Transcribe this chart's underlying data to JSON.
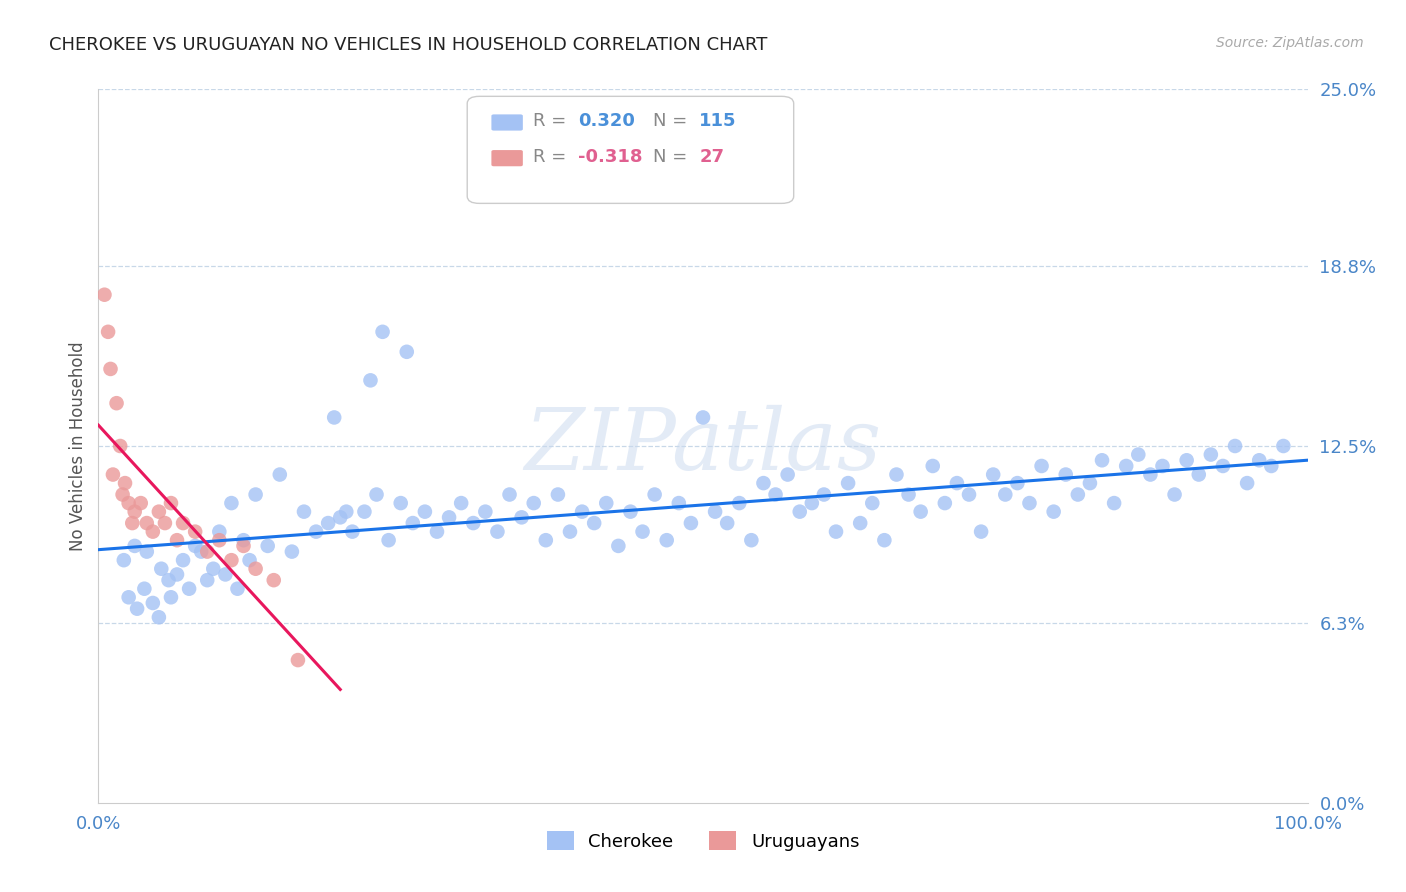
{
  "title": "CHEROKEE VS URUGUAYAN NO VEHICLES IN HOUSEHOLD CORRELATION CHART",
  "source": "Source: ZipAtlas.com",
  "ylabel_values": [
    0.0,
    6.3,
    12.5,
    18.8,
    25.0
  ],
  "xlim": [
    0.0,
    100.0
  ],
  "ylim": [
    0.0,
    25.0
  ],
  "cherokee_color": "#a4c2f4",
  "uruguayan_color": "#ea9999",
  "cherokee_line_color": "#1a73e8",
  "uruguayan_line_color": "#e8175d",
  "cherokee_R": 0.32,
  "cherokee_N": 115,
  "uruguayan_R": -0.318,
  "uruguayan_N": 27,
  "cherokee_x": [
    2.1,
    2.5,
    3.0,
    3.2,
    3.8,
    4.0,
    4.5,
    5.0,
    5.2,
    5.8,
    6.0,
    6.5,
    7.0,
    7.5,
    8.0,
    8.5,
    9.0,
    9.5,
    10.0,
    10.5,
    11.0,
    11.5,
    12.0,
    12.5,
    13.0,
    14.0,
    15.0,
    16.0,
    17.0,
    18.0,
    19.0,
    20.0,
    21.0,
    22.0,
    23.0,
    24.0,
    25.0,
    26.0,
    27.0,
    28.0,
    29.0,
    30.0,
    31.0,
    32.0,
    33.0,
    34.0,
    35.0,
    36.0,
    37.0,
    38.0,
    39.0,
    40.0,
    41.0,
    42.0,
    43.0,
    44.0,
    45.0,
    46.0,
    47.0,
    48.0,
    49.0,
    50.0,
    51.0,
    52.0,
    53.0,
    54.0,
    55.0,
    56.0,
    57.0,
    58.0,
    59.0,
    60.0,
    61.0,
    62.0,
    63.0,
    64.0,
    65.0,
    66.0,
    67.0,
    68.0,
    69.0,
    70.0,
    71.0,
    72.0,
    73.0,
    74.0,
    75.0,
    76.0,
    77.0,
    78.0,
    79.0,
    80.0,
    81.0,
    82.0,
    83.0,
    84.0,
    85.0,
    86.0,
    87.0,
    88.0,
    89.0,
    90.0,
    91.0,
    92.0,
    93.0,
    94.0,
    95.0,
    96.0,
    97.0,
    98.0,
    19.5,
    20.5,
    22.5,
    23.5,
    25.5
  ],
  "cherokee_y": [
    8.5,
    7.2,
    9.0,
    6.8,
    7.5,
    8.8,
    7.0,
    6.5,
    8.2,
    7.8,
    7.2,
    8.0,
    8.5,
    7.5,
    9.0,
    8.8,
    7.8,
    8.2,
    9.5,
    8.0,
    10.5,
    7.5,
    9.2,
    8.5,
    10.8,
    9.0,
    11.5,
    8.8,
    10.2,
    9.5,
    9.8,
    10.0,
    9.5,
    10.2,
    10.8,
    9.2,
    10.5,
    9.8,
    10.2,
    9.5,
    10.0,
    10.5,
    9.8,
    10.2,
    9.5,
    10.8,
    10.0,
    10.5,
    9.2,
    10.8,
    9.5,
    10.2,
    9.8,
    10.5,
    9.0,
    10.2,
    9.5,
    10.8,
    9.2,
    10.5,
    9.8,
    13.5,
    10.2,
    9.8,
    10.5,
    9.2,
    11.2,
    10.8,
    11.5,
    10.2,
    10.5,
    10.8,
    9.5,
    11.2,
    9.8,
    10.5,
    9.2,
    11.5,
    10.8,
    10.2,
    11.8,
    10.5,
    11.2,
    10.8,
    9.5,
    11.5,
    10.8,
    11.2,
    10.5,
    11.8,
    10.2,
    11.5,
    10.8,
    11.2,
    12.0,
    10.5,
    11.8,
    12.2,
    11.5,
    11.8,
    10.8,
    12.0,
    11.5,
    12.2,
    11.8,
    12.5,
    11.2,
    12.0,
    11.8,
    12.5,
    13.5,
    10.2,
    14.8,
    16.5,
    15.8
  ],
  "uruguayan_x": [
    0.5,
    0.8,
    1.0,
    1.2,
    1.5,
    1.8,
    2.0,
    2.2,
    2.5,
    2.8,
    3.0,
    3.5,
    4.0,
    4.5,
    5.0,
    5.5,
    6.0,
    6.5,
    7.0,
    8.0,
    9.0,
    10.0,
    11.0,
    12.0,
    13.0,
    14.5,
    16.5
  ],
  "uruguayan_y": [
    17.8,
    16.5,
    15.2,
    11.5,
    14.0,
    12.5,
    10.8,
    11.2,
    10.5,
    9.8,
    10.2,
    10.5,
    9.8,
    9.5,
    10.2,
    9.8,
    10.5,
    9.2,
    9.8,
    9.5,
    8.8,
    9.2,
    8.5,
    9.0,
    8.2,
    7.8,
    5.0
  ]
}
